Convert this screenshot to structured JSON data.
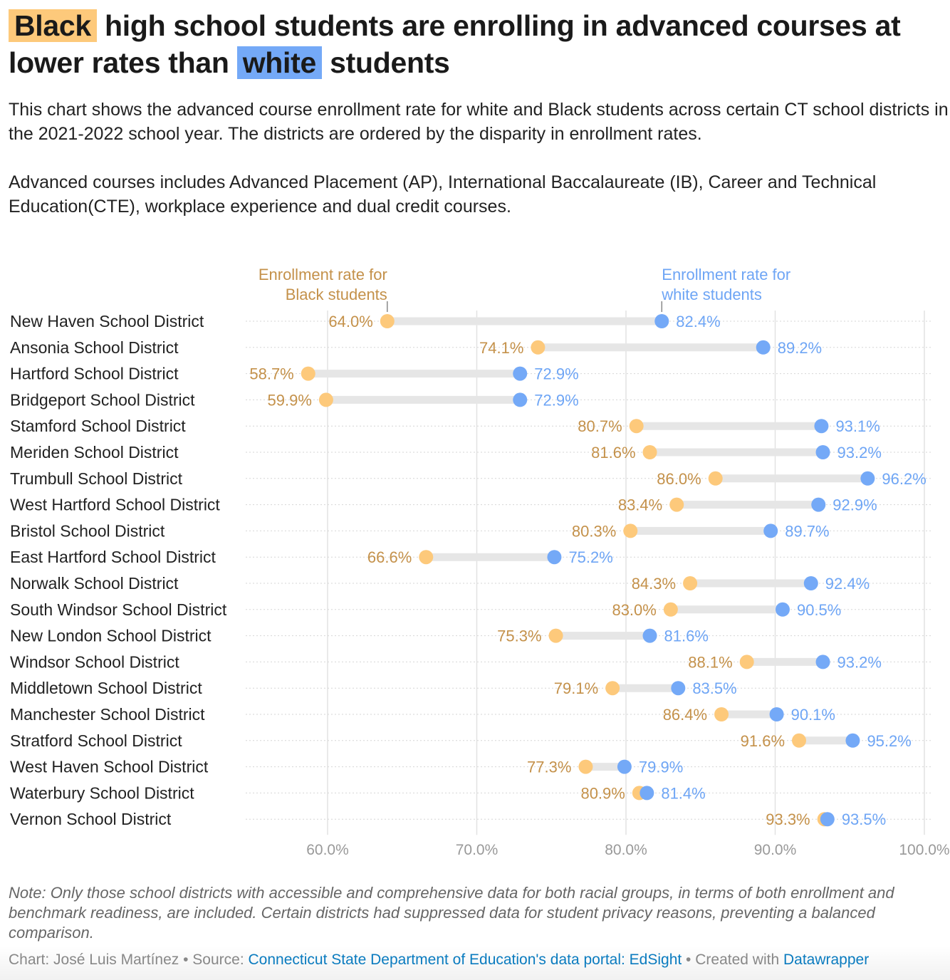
{
  "title": {
    "part1_highlight": "Black",
    "part2": " high school students are enrolling in advanced courses at lower rates than ",
    "part3_highlight": "white",
    "part4": " students"
  },
  "description": [
    "This chart shows the advanced course enrollment rate for white and Black students across certain CT school districts in the 2021-2022 school year. The districts are ordered by the disparity in enrollment rates.",
    "Advanced courses includes Advanced Placement (AP), International Baccalaureate (IB), Career and Technical Education(CTE), workplace experience and dual credit courses."
  ],
  "note": "Note: Only those school districts with accessible and comprehensive data for both racial groups, in terms of both enrollment and benchmark readiness, are included. Certain districts had suppressed data for student privacy reasons, preventing a balanced comparison.",
  "credit": {
    "chart_label": "Chart: José Luis Martínez",
    "source_prefix": "Source: ",
    "source_link": "Connecticut State Department of Education's data portal: EdSight",
    "created_prefix": "Created with ",
    "created_link": "Datawrapper",
    "separator": " • "
  },
  "colors": {
    "black_students": "#fdc97b",
    "black_label": "#c4914a",
    "white_students": "#74a9f7",
    "white_label": "#6ea5f5",
    "range_bar": "#e6e6e6"
  },
  "chart_data": {
    "type": "dot-range",
    "xlim": [
      54.5,
      100
    ],
    "xticks": [
      60,
      70,
      80,
      90,
      100
    ],
    "xtick_labels": [
      "60.0%",
      "70.0%",
      "80.0%",
      "90.0%",
      "100.0%"
    ],
    "grid": true,
    "annotations": {
      "black": [
        "Enrollment rate for",
        "Black students"
      ],
      "white": [
        "Enrollment rate for",
        "white students"
      ]
    },
    "categories": [
      "New Haven School District",
      "Ansonia School District",
      "Hartford School District",
      "Bridgeport School District",
      "Stamford School District",
      "Meriden School District",
      "Trumbull School District",
      "West Hartford School District",
      "Bristol School District",
      "East Hartford School District",
      "Norwalk School District",
      "South Windsor School District",
      "New London School District",
      "Windsor School District",
      "Middletown School District",
      "Manchester School District",
      "Stratford School District",
      "West Haven School District",
      "Waterbury School District",
      "Vernon School District"
    ],
    "series": [
      {
        "name": "Enrollment rate for Black students",
        "values": [
          64.0,
          74.1,
          58.7,
          59.9,
          80.7,
          81.6,
          86.0,
          83.4,
          80.3,
          66.6,
          84.3,
          83.0,
          75.3,
          88.1,
          79.1,
          86.4,
          91.6,
          77.3,
          80.9,
          93.3
        ]
      },
      {
        "name": "Enrollment rate for white students",
        "values": [
          82.4,
          89.2,
          72.9,
          72.9,
          93.1,
          93.2,
          96.2,
          92.9,
          89.7,
          75.2,
          92.4,
          90.5,
          81.6,
          93.2,
          83.5,
          90.1,
          95.2,
          79.9,
          81.4,
          93.5
        ]
      }
    ]
  }
}
